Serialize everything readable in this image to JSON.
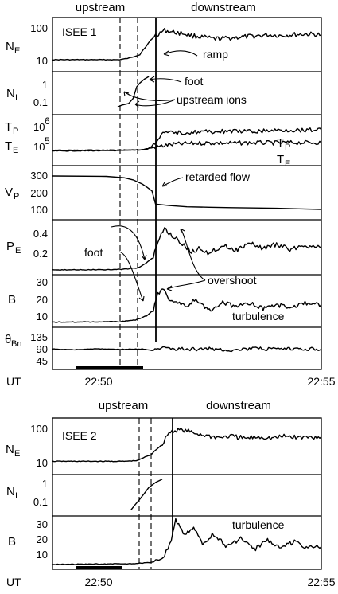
{
  "chart_data": [
    {
      "type": "line",
      "title": "ISEE 1",
      "header": {
        "left": "upstream",
        "right": "downstream"
      },
      "time_axis": {
        "label": "UT",
        "ticks": [
          "22:50",
          "22:55"
        ],
        "range": [
          "22:49",
          "22:55"
        ]
      },
      "panels": [
        {
          "id": "ne",
          "ylabel": "N",
          "ylabel_sub": "E",
          "scale": "log",
          "ylim": [
            5,
            150
          ],
          "ticks": [
            "100",
            "10"
          ],
          "series": [
            {
              "values": [
                [
                  0.0,
                  10
                ],
                [
                  1.5,
                  10
                ],
                [
                  1.7,
                  11
                ],
                [
                  1.95,
                  14
                ],
                [
                  2.1,
                  25
                ],
                [
                  2.3,
                  50
                ],
                [
                  2.5,
                  70
                ],
                [
                  2.7,
                  62
                ],
                [
                  2.9,
                  58
                ],
                [
                  3.1,
                  50
                ],
                [
                  3.3,
                  46
                ],
                [
                  3.6,
                  40
                ],
                [
                  3.9,
                  42
                ],
                [
                  4.2,
                  45
                ],
                [
                  4.5,
                  48
                ],
                [
                  4.8,
                  52
                ],
                [
                  5.1,
                  50
                ],
                [
                  5.4,
                  53
                ],
                [
                  5.7,
                  55
                ],
                [
                  6.0,
                  52
                ]
              ]
            }
          ]
        },
        {
          "id": "ni",
          "ylabel": "N",
          "ylabel_sub": "I",
          "scale": "log",
          "ylim": [
            0.01,
            5
          ],
          "ticks": [
            "1",
            "0.1"
          ],
          "series": [
            {
              "values": [
                [
                  1.45,
                  0.025
                ],
                [
                  1.55,
                  0.035
                ],
                [
                  1.7,
                  0.045
                ],
                [
                  1.8,
                  0.1
                ],
                [
                  1.88,
                  0.6
                ],
                [
                  1.95,
                  1.1
                ],
                [
                  2.05,
                  2.0
                ],
                [
                  2.15,
                  3.0
                ]
              ]
            }
          ]
        },
        {
          "id": "tp",
          "ylabel": "T",
          "ylabel_sub": "P",
          "ylabel2": "T",
          "ylabel2_sub": "E",
          "scale": "log",
          "ylim": [
            40000,
            5000000
          ],
          "ticks": [
            "10^6",
            "10^5"
          ],
          "series": [
            {
              "name": "T_P",
              "values": [
                [
                  0.0,
                  160000
                ],
                [
                  1.5,
                  165000
                ],
                [
                  2.1,
                  170000
                ],
                [
                  2.25,
                  260000
                ],
                [
                  2.5,
                  900000
                ],
                [
                  3.0,
                  980000
                ],
                [
                  3.5,
                  1050000
                ],
                [
                  4.0,
                  1100000
                ],
                [
                  4.5,
                  1050000
                ],
                [
                  5.0,
                  1200000
                ],
                [
                  5.5,
                  1250000
                ],
                [
                  6.0,
                  1300000
                ]
              ]
            },
            {
              "name": "T_E",
              "values": [
                [
                  0.0,
                  150000
                ],
                [
                  1.5,
                  155000
                ],
                [
                  2.0,
                  170000
                ],
                [
                  2.3,
                  220000
                ],
                [
                  2.6,
                  280000
                ],
                [
                  3.0,
                  320000
                ],
                [
                  3.5,
                  340000
                ],
                [
                  4.0,
                  330000
                ],
                [
                  4.5,
                  345000
                ],
                [
                  5.0,
                  340000
                ],
                [
                  5.5,
                  350000
                ],
                [
                  6.0,
                  355000
                ]
              ]
            }
          ]
        },
        {
          "id": "vp",
          "ylabel": "V",
          "ylabel_sub": "P",
          "scale": "linear",
          "ylim": [
            50,
            340
          ],
          "ticks": [
            "300",
            "200",
            "100"
          ],
          "series": [
            {
              "values": [
                [
                  0.0,
                  290
                ],
                [
                  1.2,
                  288
                ],
                [
                  1.6,
                  280
                ],
                [
                  1.8,
                  268
                ],
                [
                  2.0,
                  245
                ],
                [
                  2.1,
                  228
                ],
                [
                  2.22,
                  205
                ],
                [
                  2.3,
                  130
                ],
                [
                  2.6,
                  122
                ],
                [
                  3.0,
                  115
                ],
                [
                  3.5,
                  112
                ],
                [
                  4.0,
                  110
                ],
                [
                  4.5,
                  108
                ],
                [
                  5.0,
                  106
                ],
                [
                  5.5,
                  103
                ],
                [
                  6.0,
                  100
                ]
              ]
            }
          ]
        },
        {
          "id": "pe",
          "ylabel": "P",
          "ylabel_sub": "E",
          "scale": "linear",
          "ylim": [
            0.0,
            0.5
          ],
          "ticks": [
            "0.4",
            "0.2"
          ],
          "series": [
            {
              "values": [
                [
                  0.0,
                  0.03
                ],
                [
                  1.5,
                  0.035
                ],
                [
                  1.9,
                  0.05
                ],
                [
                  2.1,
                  0.1
                ],
                [
                  2.25,
                  0.15
                ],
                [
                  2.35,
                  0.3
                ],
                [
                  2.5,
                  0.43
                ],
                [
                  2.7,
                  0.35
                ],
                [
                  2.9,
                  0.28
                ],
                [
                  3.1,
                  0.2
                ],
                [
                  3.3,
                  0.24
                ],
                [
                  3.5,
                  0.19
                ],
                [
                  3.8,
                  0.27
                ],
                [
                  4.1,
                  0.22
                ],
                [
                  4.4,
                  0.29
                ],
                [
                  4.7,
                  0.24
                ],
                [
                  5.0,
                  0.28
                ],
                [
                  5.3,
                  0.23
                ],
                [
                  5.6,
                  0.27
                ],
                [
                  6.0,
                  0.25
                ]
              ]
            }
          ]
        },
        {
          "id": "b",
          "ylabel": "B",
          "ylabel_sub": "",
          "scale": "linear",
          "ylim": [
            3,
            38
          ],
          "ticks": [
            "30",
            "20",
            "10"
          ],
          "series": [
            {
              "values": [
                [
                  0.0,
                  5.5
                ],
                [
                  1.5,
                  5.8
                ],
                [
                  1.85,
                  7
                ],
                [
                  2.1,
                  10
                ],
                [
                  2.25,
                  14
                ],
                [
                  2.35,
                  25
                ],
                [
                  2.45,
                  30
                ],
                [
                  2.6,
                  22
                ],
                [
                  2.8,
                  20
                ],
                [
                  3.0,
                  16
                ],
                [
                  3.2,
                  22
                ],
                [
                  3.5,
                  14
                ],
                [
                  3.8,
                  20
                ],
                [
                  4.1,
                  16
                ],
                [
                  4.4,
                  19
                ],
                [
                  4.7,
                  15
                ],
                [
                  5.0,
                  18
                ],
                [
                  5.3,
                  16
                ],
                [
                  5.6,
                  19
                ],
                [
                  6.0,
                  18
                ]
              ]
            }
          ]
        },
        {
          "id": "theta",
          "ylabel": "θ",
          "ylabel_sub": "Bn",
          "scale": "linear",
          "ylim": [
            20,
            155
          ],
          "ticks": [
            "135",
            "90",
            "45"
          ],
          "series": [
            {
              "values": [
                [
                  0.0,
                  85
                ],
                [
                  0.5,
                  83
                ],
                [
                  1.0,
                  86
                ],
                [
                  1.5,
                  84
                ],
                [
                  2.0,
                  85
                ],
                [
                  2.25,
                  80
                ],
                [
                  2.5,
                  88
                ],
                [
                  3.0,
                  84
                ],
                [
                  3.5,
                  86
                ],
                [
                  4.0,
                  82
                ],
                [
                  4.5,
                  87
                ],
                [
                  5.0,
                  84
                ],
                [
                  5.5,
                  86
                ],
                [
                  6.0,
                  85
                ]
              ]
            }
          ]
        }
      ],
      "annotations": [
        "ramp",
        "foot",
        "upstream ions",
        "retarded flow",
        "foot",
        "overshoot",
        "turbulence"
      ]
    },
    {
      "type": "line",
      "title": "ISEE 2",
      "header": {
        "left": "upstream",
        "right": "downstream"
      },
      "time_axis": {
        "label": "UT",
        "ticks": [
          "22:50",
          "22:55"
        ],
        "range": [
          "22:49",
          "22:55"
        ]
      },
      "panels": [
        {
          "id": "ne",
          "ylabel": "N",
          "ylabel_sub": "E",
          "scale": "log",
          "ylim": [
            5,
            150
          ],
          "ticks": [
            "100",
            "10"
          ],
          "series": [
            {
              "values": [
                [
                  0.0,
                  10.5
                ],
                [
                  1.6,
                  10.5
                ],
                [
                  1.9,
                  11
                ],
                [
                  2.2,
                  16
                ],
                [
                  2.45,
                  30
                ],
                [
                  2.6,
                  65
                ],
                [
                  2.8,
                  80
                ],
                [
                  3.0,
                  72
                ],
                [
                  3.2,
                  62
                ],
                [
                  3.4,
                  55
                ],
                [
                  3.7,
                  48
                ],
                [
                  4.0,
                  52
                ],
                [
                  4.3,
                  45
                ],
                [
                  4.6,
                  50
                ],
                [
                  4.9,
                  46
                ],
                [
                  5.2,
                  52
                ],
                [
                  5.5,
                  48
                ],
                [
                  5.8,
                  50
                ],
                [
                  6.0,
                  50
                ]
              ]
            }
          ]
        },
        {
          "id": "ni",
          "ylabel": "N",
          "ylabel_sub": "I",
          "scale": "log",
          "ylim": [
            0.01,
            5
          ],
          "ticks": [
            "1",
            "0.1"
          ],
          "series": [
            {
              "values": [
                [
                  1.75,
                  0.02
                ],
                [
                  1.85,
                  0.05
                ],
                [
                  1.95,
                  0.12
                ],
                [
                  2.05,
                  0.3
                ],
                [
                  2.15,
                  0.8
                ],
                [
                  2.3,
                  1.8
                ],
                [
                  2.45,
                  3.0
                ]
              ]
            }
          ]
        },
        {
          "id": "b",
          "ylabel": "B",
          "ylabel_sub": "",
          "scale": "linear",
          "ylim": [
            3,
            34
          ],
          "ticks": [
            "30",
            "20",
            "10"
          ],
          "series": [
            {
              "values": [
                [
                  0.0,
                  5.0
                ],
                [
                  1.8,
                  5.5
                ],
                [
                  2.3,
                  6.5
                ],
                [
                  2.5,
                  10
                ],
                [
                  2.65,
                  20
                ],
                [
                  2.75,
                  32
                ],
                [
                  2.95,
                  24
                ],
                [
                  3.15,
                  27
                ],
                [
                  3.35,
                  18
                ],
                [
                  3.6,
                  24
                ],
                [
                  3.9,
                  16
                ],
                [
                  4.2,
                  21
                ],
                [
                  4.5,
                  14
                ],
                [
                  4.8,
                  20
                ],
                [
                  5.1,
                  16
                ],
                [
                  5.4,
                  19
                ],
                [
                  5.7,
                  15
                ],
                [
                  6.0,
                  16
                ]
              ]
            }
          ]
        }
      ],
      "annotations": [
        "turbulence"
      ]
    }
  ]
}
